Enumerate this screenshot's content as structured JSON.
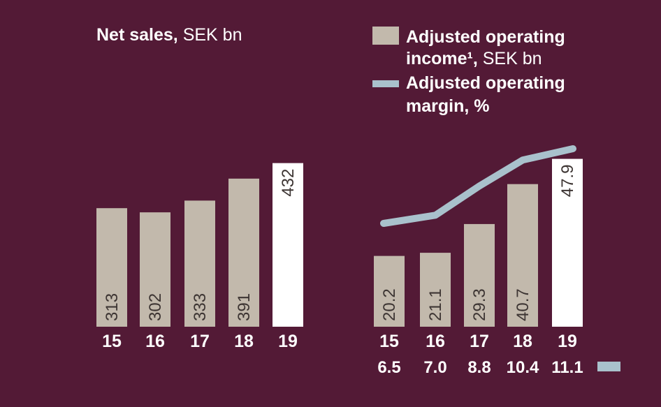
{
  "colors": {
    "background": "#531a36",
    "bar": "#c2b9ac",
    "bar_highlight": "#ffffff",
    "line": "#a9c1cc",
    "text": "#ffffff",
    "bar_label_text": "#3d3533"
  },
  "chart_data": [
    {
      "type": "bar",
      "title_bold": "Net sales,",
      "title_rest": " SEK bn",
      "categories": [
        "15",
        "16",
        "17",
        "18",
        "19"
      ],
      "values": [
        313,
        302,
        333,
        391,
        432
      ],
      "value_labels": [
        "313",
        "302",
        "333",
        "391",
        "432"
      ],
      "highlight_index": 4,
      "ylim": [
        0,
        470
      ]
    },
    {
      "type": "bar+line",
      "legend": {
        "bar_line1": "Adjusted operating",
        "bar_line2_bold": "income¹,",
        "bar_line2_rest": " SEK bn",
        "line_line1": "Adjusted operating",
        "line_line2": "margin, %"
      },
      "categories": [
        "15",
        "16",
        "17",
        "18",
        "19"
      ],
      "series": [
        {
          "type": "bar",
          "values": [
            20.2,
            21.1,
            29.3,
            40.7,
            47.9
          ],
          "value_labels": [
            "20.2",
            "21.1",
            "29.3",
            "40.7",
            "47.9"
          ],
          "highlight_index": 4
        },
        {
          "type": "line",
          "values": [
            6.5,
            7.0,
            8.8,
            10.4,
            11.1
          ],
          "value_labels": [
            "6.5",
            "7.0",
            "8.8",
            "10.4",
            "11.1"
          ]
        }
      ],
      "ylim_bar": [
        0,
        51
      ],
      "ylim_line": [
        0,
        12
      ]
    }
  ]
}
